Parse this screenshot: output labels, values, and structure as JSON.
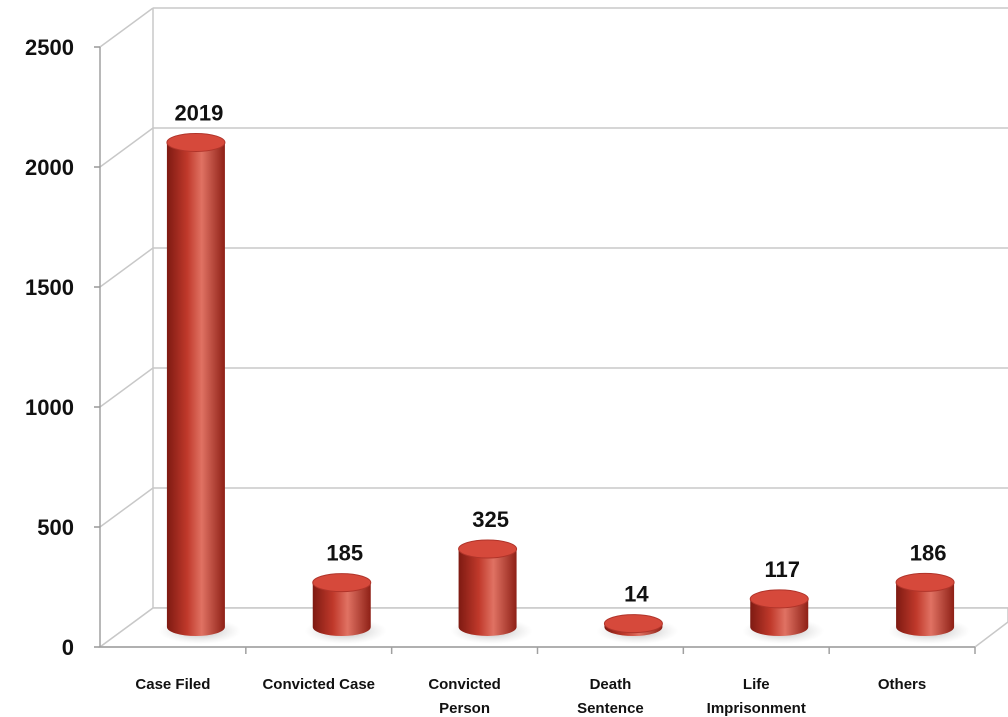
{
  "chart_data": {
    "type": "bar",
    "style": "3d-cylinder",
    "categories": [
      [
        "Case Filed"
      ],
      [
        "Convicted Case"
      ],
      [
        "Convicted",
        "Person"
      ],
      [
        "Death",
        "Sentence"
      ],
      [
        "Life",
        "Imprisonment"
      ],
      [
        "Others"
      ]
    ],
    "values": [
      2019,
      185,
      325,
      14,
      117,
      186
    ],
    "data_labels": [
      "2019",
      "185",
      "325",
      "14",
      "117",
      "186"
    ],
    "ylim": [
      0,
      2500
    ],
    "yticks": [
      0,
      500,
      1000,
      1500,
      2000,
      2500
    ],
    "grid": true,
    "legend": "none",
    "colors": {
      "bar": "#c0392b",
      "bar_dark": "#7e1a12",
      "bar_light": "#e98272",
      "top": "#d6493b",
      "grid": "#c8c8c8",
      "shadow": "#bdbdbd"
    }
  }
}
